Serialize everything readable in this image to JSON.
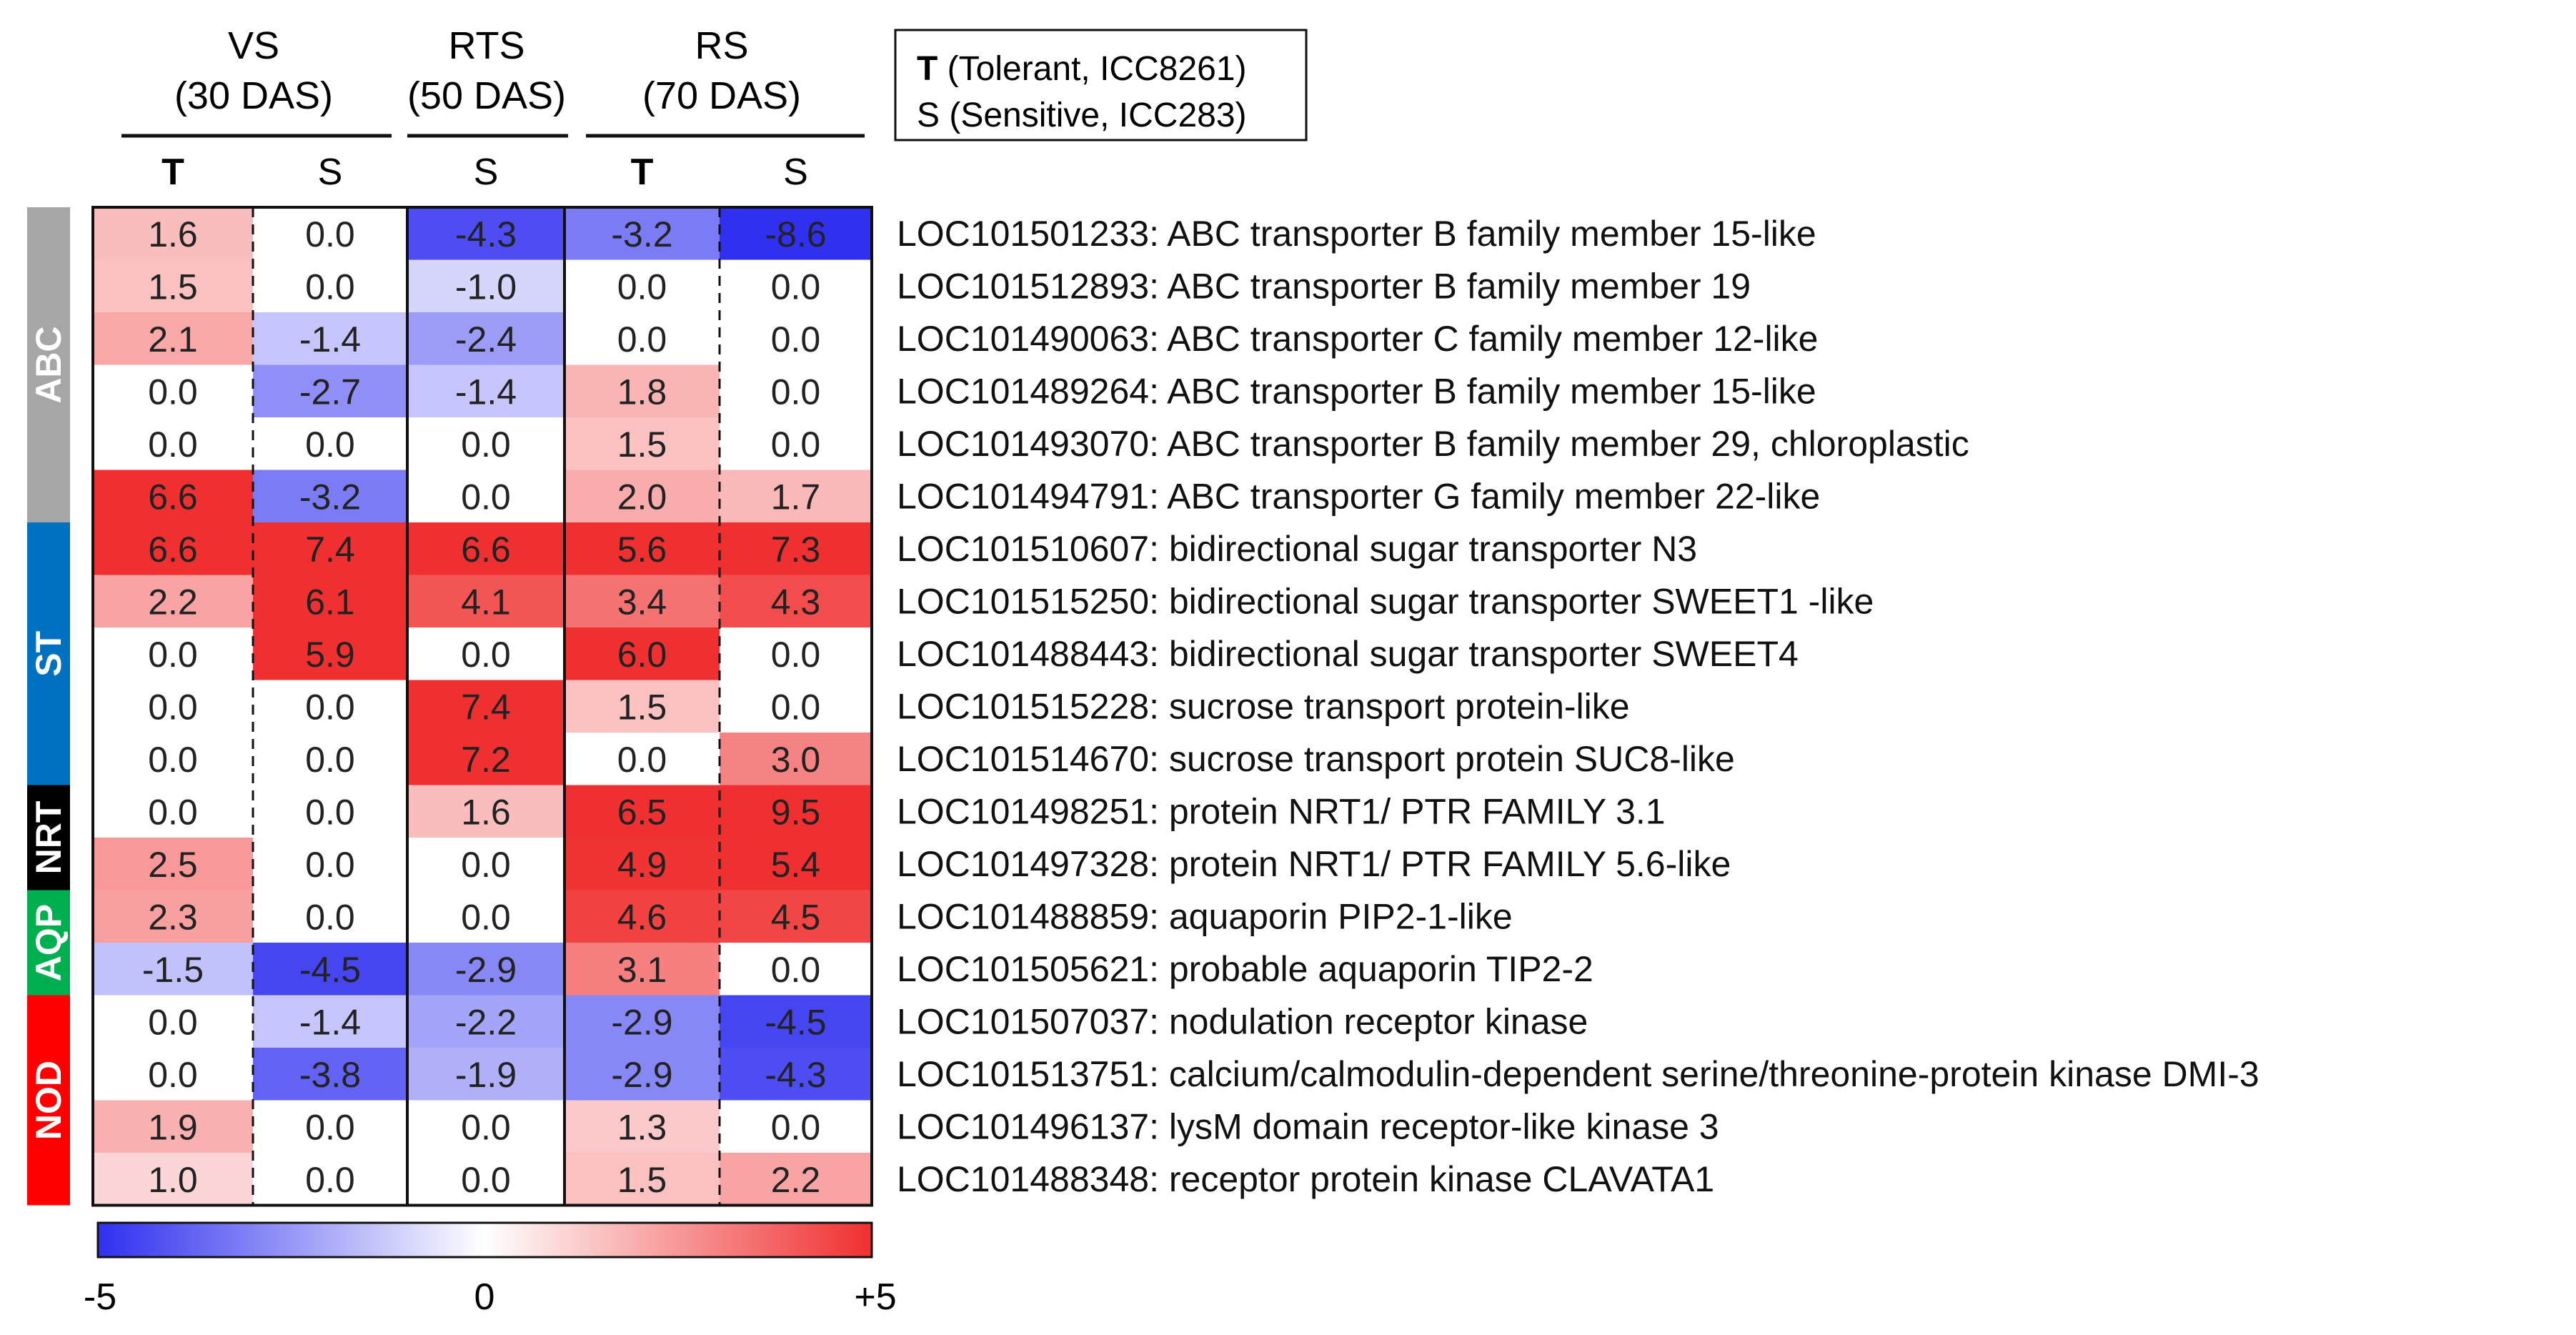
{
  "chart_data": {
    "type": "heatmap",
    "title": "",
    "stage_groups": [
      {
        "label_line1": "VS",
        "label_line2": "(30 DAS)"
      },
      {
        "label_line1": "RTS",
        "label_line2": "(50 DAS)"
      },
      {
        "label_line1": "RS",
        "label_line2": "(70 DAS)"
      }
    ],
    "columns": [
      "T",
      "S",
      "S",
      "T",
      "S"
    ],
    "legend_box": {
      "line1_bold": "T",
      "line1_text": " (Tolerant, ICC8261)",
      "line2_text": "S (Sensitive, ICC283)"
    },
    "categories": [
      {
        "name": "ABC",
        "color": "#a6a6a6",
        "rows": 6
      },
      {
        "name": "ST",
        "color": "#0070c0",
        "rows": 5
      },
      {
        "name": "NRT",
        "color": "#000000",
        "rows": 2
      },
      {
        "name": "AQP",
        "color": "#00b050",
        "rows": 2
      },
      {
        "name": "NOD",
        "color": "#ff0000",
        "rows": 4
      }
    ],
    "rows": [
      {
        "label": "LOC101501233: ABC transporter B family member 15-like",
        "values": [
          1.6,
          0.0,
          -4.3,
          -3.2,
          -8.6
        ],
        "texts": [
          "1.6",
          "0.0",
          "-4.3",
          "-3.2",
          "-8.6"
        ]
      },
      {
        "label": "LOC101512893: ABC transporter B family member 19",
        "values": [
          1.5,
          0.0,
          -1.0,
          0.0,
          0.0
        ],
        "texts": [
          "1.5",
          "0.0",
          "-1.0",
          "0.0",
          "0.0"
        ]
      },
      {
        "label": "LOC101490063: ABC transporter C family member 12-like",
        "values": [
          2.1,
          -1.4,
          -2.4,
          0.0,
          0.0
        ],
        "texts": [
          "2.1",
          "-1.4",
          "-2.4",
          "0.0",
          "0.0"
        ]
      },
      {
        "label": "LOC101489264: ABC transporter B family member 15-like",
        "values": [
          0.0,
          -2.7,
          -1.4,
          1.8,
          0.0
        ],
        "texts": [
          "0.0",
          "-2.7",
          "-1.4",
          "1.8",
          "0.0"
        ]
      },
      {
        "label": "LOC101493070: ABC transporter B family member 29, chloroplastic",
        "values": [
          0.0,
          0.0,
          0.0,
          1.5,
          0.0
        ],
        "texts": [
          "0.0",
          "0.0",
          "0.0",
          "1.5",
          "0.0"
        ]
      },
      {
        "label": "LOC101494791: ABC transporter G family member 22-like",
        "values": [
          6.6,
          -3.2,
          0.0,
          2.0,
          1.7
        ],
        "texts": [
          "6.6",
          "-3.2",
          "0.0",
          "2.0",
          "1.7"
        ]
      },
      {
        "label": "LOC101510607: bidirectional sugar transporter N3",
        "values": [
          6.6,
          7.4,
          6.6,
          5.6,
          7.3
        ],
        "texts": [
          "6.6",
          "7.4",
          "6.6",
          "5.6",
          "7.3"
        ]
      },
      {
        "label": "LOC101515250: bidirectional sugar transporter SWEET1 -like",
        "values": [
          2.2,
          6.1,
          4.1,
          3.4,
          4.3
        ],
        "texts": [
          "2.2",
          "6.1",
          "4.1",
          "3.4",
          "4.3"
        ]
      },
      {
        "label": "LOC101488443: bidirectional sugar transporter SWEET4",
        "values": [
          0.0,
          5.9,
          0.0,
          6.0,
          0.0
        ],
        "texts": [
          "0.0",
          "5.9",
          "0.0",
          "6.0",
          "0.0"
        ]
      },
      {
        "label": "LOC101515228: sucrose transport protein-like",
        "values": [
          0.0,
          0.0,
          7.4,
          1.5,
          0.0
        ],
        "texts": [
          "0.0",
          "0.0",
          "7.4",
          "1.5",
          "0.0"
        ]
      },
      {
        "label": "LOC101514670: sucrose transport protein SUC8-like",
        "values": [
          0.0,
          0.0,
          7.2,
          0.0,
          3.0
        ],
        "texts": [
          "0.0",
          "0.0",
          "7.2",
          "0.0",
          "3.0"
        ]
      },
      {
        "label": "LOC101498251: protein NRT1/ PTR FAMILY 3.1",
        "values": [
          0.0,
          0.0,
          1.6,
          6.5,
          9.5
        ],
        "texts": [
          "0.0",
          "0.0",
          "1.6",
          "6.5",
          "9.5"
        ]
      },
      {
        "label": "LOC101497328: protein NRT1/ PTR FAMILY 5.6-like",
        "values": [
          2.5,
          0.0,
          0.0,
          4.9,
          5.4
        ],
        "texts": [
          "2.5",
          "0.0",
          "0.0",
          "4.9",
          "5.4"
        ]
      },
      {
        "label": "LOC101488859: aquaporin PIP2-1-like",
        "values": [
          2.3,
          0.0,
          0.0,
          4.6,
          4.5
        ],
        "texts": [
          "2.3",
          "0.0",
          "0.0",
          "4.6",
          "4.5"
        ]
      },
      {
        "label": "LOC101505621: probable aquaporin TIP2-2",
        "values": [
          -1.5,
          -4.5,
          -2.9,
          3.1,
          0.0
        ],
        "texts": [
          "-1.5",
          "-4.5",
          "-2.9",
          "3.1",
          "0.0"
        ]
      },
      {
        "label": "LOC101507037: nodulation receptor kinase",
        "values": [
          0.0,
          -1.4,
          -2.2,
          -2.9,
          -4.5
        ],
        "texts": [
          "0.0",
          "-1.4",
          "-2.2",
          "-2.9",
          "-4.5"
        ]
      },
      {
        "label": "LOC101513751: calcium/calmodulin-dependent serine/threonine-protein kinase DMI-3",
        "values": [
          0.0,
          -3.8,
          -1.9,
          -2.9,
          -4.3
        ],
        "texts": [
          "0.0",
          "-3.8",
          "-1.9",
          "-2.9",
          "-4.3"
        ]
      },
      {
        "label": "LOC101496137: lysM domain receptor-like kinase 3",
        "values": [
          1.9,
          0.0,
          0.0,
          1.3,
          0.0
        ],
        "texts": [
          "1.9",
          "0.0",
          "0.0",
          "1.3",
          "0.0"
        ]
      },
      {
        "label": "LOC101488348: receptor protein kinase CLAVATA1",
        "values": [
          1.0,
          0.0,
          0.0,
          1.5,
          2.2
        ],
        "texts": [
          "1.0",
          "0.0",
          "0.0",
          "1.5",
          "2.2"
        ]
      }
    ],
    "colorscale": {
      "min": -5,
      "max": 5,
      "center": 0,
      "low_color": "#3030f0",
      "mid_color": "#ffffff",
      "high_color": "#f03030",
      "tick_labels": [
        "-5",
        "0",
        "+5"
      ]
    }
  }
}
